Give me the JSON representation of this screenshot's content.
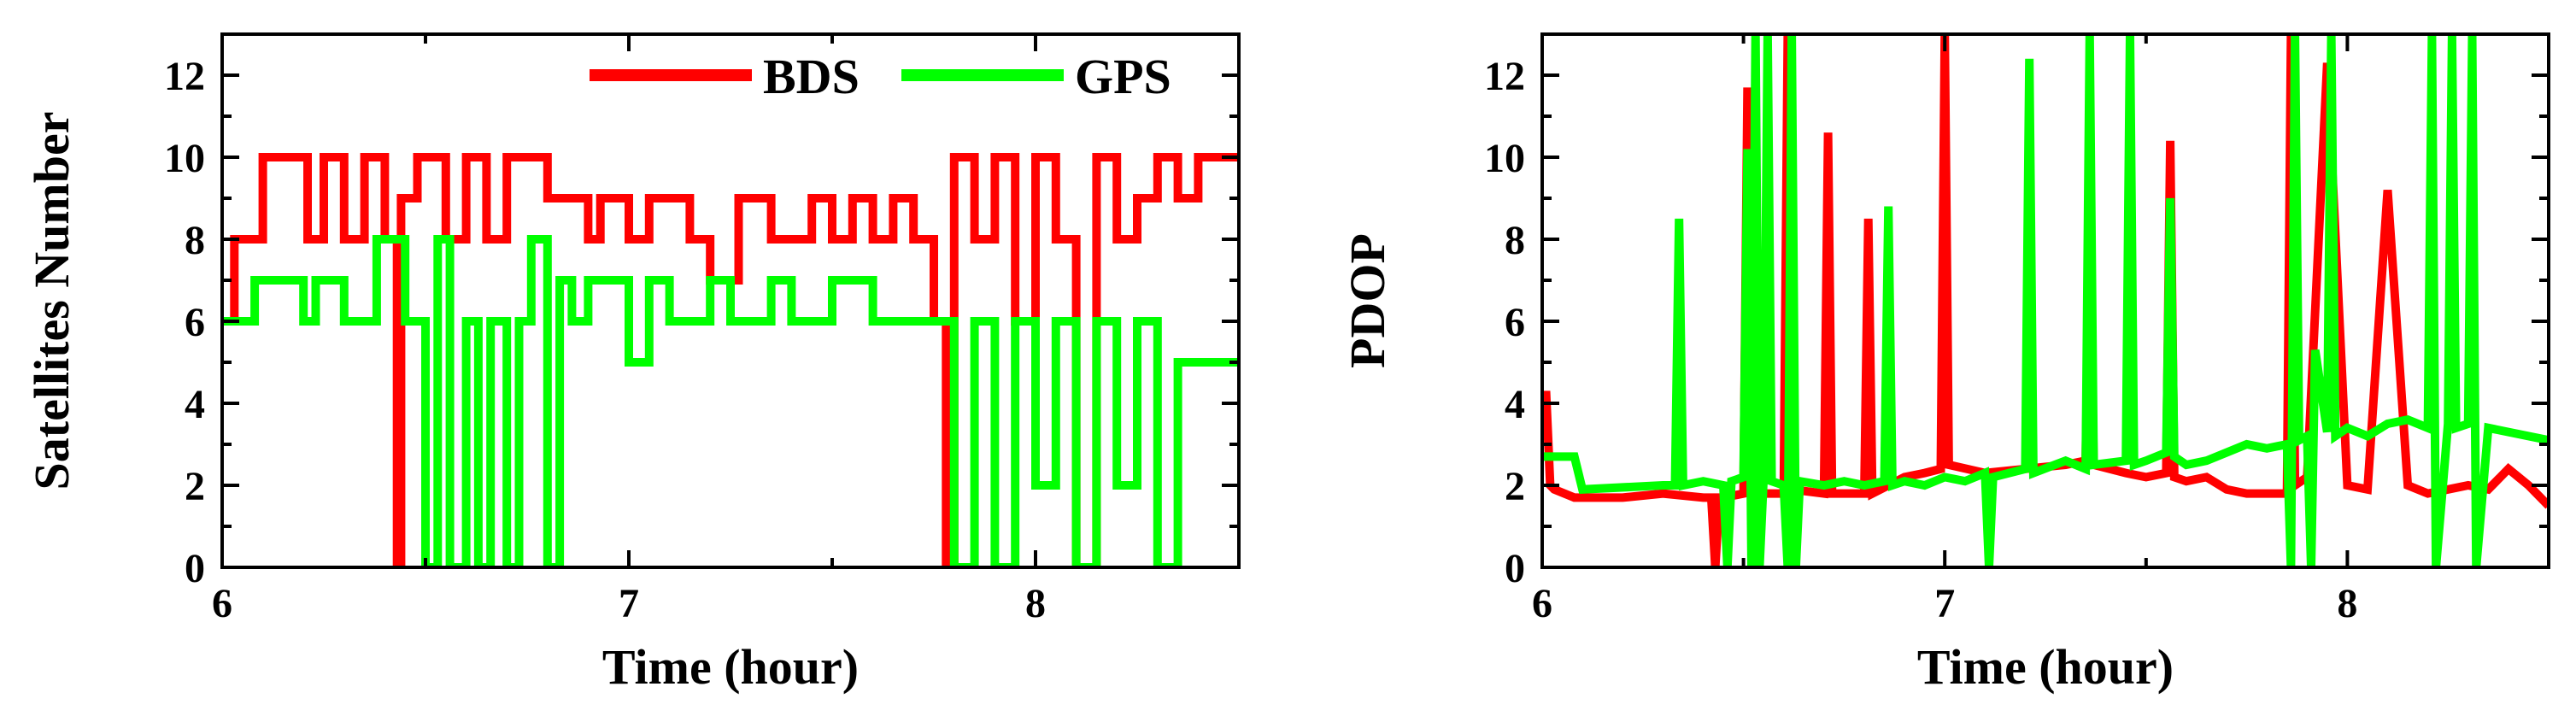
{
  "chart_data": [
    {
      "type": "line",
      "title": "",
      "xlabel": "Time (hour)",
      "ylabel": "Satellites Number",
      "xlim": [
        6,
        8.5
      ],
      "ylim": [
        0,
        13
      ],
      "xticks": [
        6,
        7,
        8
      ],
      "yticks": [
        0,
        2,
        4,
        6,
        8,
        10,
        12
      ],
      "grid": false,
      "legend_position": "top-right",
      "series": [
        {
          "name": "BDS",
          "color": "#ff0000",
          "x": [
            6.0,
            6.03,
            6.03,
            6.1,
            6.1,
            6.21,
            6.21,
            6.25,
            6.25,
            6.3,
            6.3,
            6.35,
            6.35,
            6.4,
            6.4,
            6.43,
            6.43,
            6.44,
            6.44,
            6.48,
            6.48,
            6.55,
            6.55,
            6.6,
            6.6,
            6.65,
            6.65,
            6.7,
            6.7,
            6.8,
            6.8,
            6.9,
            6.9,
            6.93,
            6.93,
            7.0,
            7.0,
            7.05,
            7.05,
            7.15,
            7.15,
            7.2,
            7.2,
            7.27,
            7.27,
            7.35,
            7.35,
            7.45,
            7.45,
            7.5,
            7.5,
            7.55,
            7.55,
            7.6,
            7.6,
            7.65,
            7.65,
            7.7,
            7.7,
            7.75,
            7.75,
            7.78,
            7.78,
            7.8,
            7.8,
            7.85,
            7.85,
            7.9,
            7.9,
            7.95,
            7.95,
            8.0,
            8.0,
            8.05,
            8.05,
            8.1,
            8.1,
            8.15,
            8.15,
            8.2,
            8.2,
            8.25,
            8.25,
            8.3,
            8.3,
            8.35,
            8.35,
            8.4,
            8.4,
            8.45,
            8.45,
            8.5
          ],
          "y": [
            6,
            6,
            8,
            8,
            10,
            10,
            8,
            8,
            10,
            10,
            8,
            8,
            10,
            10,
            8,
            8,
            0,
            0,
            9,
            9,
            10,
            10,
            8,
            8,
            10,
            10,
            8,
            8,
            10,
            10,
            9,
            9,
            8,
            8,
            9,
            9,
            8,
            8,
            9,
            9,
            8,
            8,
            7,
            7,
            9,
            9,
            8,
            8,
            9,
            9,
            8,
            8,
            9,
            9,
            8,
            8,
            9,
            9,
            8,
            8,
            6,
            6,
            0,
            0,
            10,
            10,
            8,
            8,
            10,
            10,
            6,
            6,
            10,
            10,
            8,
            8,
            0,
            0,
            10,
            10,
            8,
            8,
            9,
            9,
            10,
            10,
            9,
            9,
            10,
            10,
            10,
            10
          ]
        },
        {
          "name": "GPS",
          "color": "#00ff00",
          "x": [
            6.0,
            6.08,
            6.08,
            6.2,
            6.2,
            6.23,
            6.23,
            6.3,
            6.3,
            6.38,
            6.38,
            6.45,
            6.45,
            6.5,
            6.5,
            6.53,
            6.53,
            6.56,
            6.56,
            6.6,
            6.6,
            6.63,
            6.63,
            6.66,
            6.66,
            6.7,
            6.7,
            6.73,
            6.73,
            6.76,
            6.76,
            6.8,
            6.8,
            6.83,
            6.83,
            6.86,
            6.86,
            6.9,
            6.9,
            7.0,
            7.0,
            7.05,
            7.05,
            7.1,
            7.1,
            7.2,
            7.2,
            7.25,
            7.25,
            7.35,
            7.35,
            7.4,
            7.4,
            7.5,
            7.5,
            7.6,
            7.6,
            7.65,
            7.65,
            7.8,
            7.8,
            7.85,
            7.85,
            7.9,
            7.9,
            7.95,
            7.95,
            8.0,
            8.0,
            8.05,
            8.05,
            8.1,
            8.1,
            8.15,
            8.15,
            8.2,
            8.2,
            8.25,
            8.25,
            8.3,
            8.3,
            8.35,
            8.35,
            8.4,
            8.4,
            8.5
          ],
          "y": [
            6,
            6,
            7,
            7,
            6,
            6,
            7,
            7,
            6,
            6,
            8,
            8,
            6,
            6,
            0,
            0,
            8,
            8,
            0,
            0,
            6,
            6,
            0,
            0,
            6,
            6,
            0,
            0,
            6,
            6,
            8,
            8,
            0,
            0,
            7,
            7,
            6,
            6,
            7,
            7,
            5,
            5,
            7,
            7,
            6,
            6,
            7,
            7,
            6,
            6,
            7,
            7,
            6,
            6,
            7,
            7,
            6,
            6,
            6,
            6,
            0,
            0,
            6,
            6,
            0,
            0,
            6,
            6,
            2,
            2,
            6,
            6,
            0,
            0,
            6,
            6,
            2,
            2,
            6,
            6,
            0,
            0,
            5,
            5,
            5,
            5
          ]
        }
      ]
    },
    {
      "type": "line",
      "title": "",
      "xlabel": "Time (hour)",
      "ylabel": "PDOP",
      "xlim": [
        6,
        8.5
      ],
      "ylim": [
        0,
        13
      ],
      "xticks": [
        6,
        7,
        8
      ],
      "yticks": [
        0,
        2,
        4,
        6,
        8,
        10,
        12
      ],
      "grid": false,
      "series": [
        {
          "name": "BDS",
          "color": "#ff0000",
          "x": [
            6.0,
            6.01,
            6.02,
            6.03,
            6.08,
            6.2,
            6.3,
            6.4,
            6.42,
            6.43,
            6.44,
            6.45,
            6.5,
            6.51,
            6.52,
            6.6,
            6.61,
            6.62,
            6.7,
            6.71,
            6.72,
            6.8,
            6.81,
            6.82,
            6.9,
            6.95,
            6.99,
            7.0,
            7.01,
            7.1,
            7.2,
            7.3,
            7.35,
            7.36,
            7.37,
            7.45,
            7.5,
            7.55,
            7.56,
            7.57,
            7.6,
            7.65,
            7.7,
            7.75,
            7.8,
            7.85,
            7.86,
            7.87,
            7.9,
            7.95,
            8.0,
            8.05,
            8.1,
            8.15,
            8.2,
            8.25,
            8.3,
            8.35,
            8.4,
            8.45,
            8.5
          ],
          "y": [
            4.2,
            4.2,
            2.0,
            1.9,
            1.7,
            1.7,
            1.8,
            1.7,
            1.7,
            0,
            1.7,
            1.7,
            1.8,
            11.7,
            1.8,
            1.8,
            13,
            1.9,
            1.8,
            10.6,
            1.8,
            1.8,
            8.5,
            1.8,
            2.2,
            2.3,
            2.4,
            13,
            2.5,
            2.3,
            2.4,
            2.5,
            2.6,
            8.5,
            2.5,
            2.3,
            2.2,
            2.3,
            10.4,
            2.2,
            2.1,
            2.2,
            1.9,
            1.8,
            1.8,
            1.8,
            13,
            2.0,
            2.2,
            12.3,
            2.0,
            1.9,
            9.2,
            2.0,
            1.8,
            1.9,
            2.0,
            1.9,
            2.4,
            2.0,
            1.5
          ]
        },
        {
          "name": "GPS",
          "color": "#00ff00",
          "x": [
            6.0,
            6.08,
            6.1,
            6.3,
            6.33,
            6.34,
            6.35,
            6.4,
            6.45,
            6.46,
            6.47,
            6.5,
            6.51,
            6.52,
            6.53,
            6.54,
            6.55,
            6.56,
            6.57,
            6.6,
            6.61,
            6.62,
            6.63,
            6.64,
            6.7,
            6.75,
            6.8,
            6.85,
            6.86,
            6.87,
            6.9,
            6.95,
            7.0,
            7.05,
            7.1,
            7.11,
            7.12,
            7.2,
            7.21,
            7.22,
            7.3,
            7.35,
            7.36,
            7.37,
            7.45,
            7.46,
            7.47,
            7.5,
            7.55,
            7.56,
            7.57,
            7.6,
            7.65,
            7.7,
            7.75,
            7.8,
            7.85,
            7.86,
            7.87,
            7.88,
            7.9,
            7.91,
            7.92,
            7.95,
            7.96,
            7.97,
            8.0,
            8.05,
            8.1,
            8.15,
            8.2,
            8.21,
            8.22,
            8.25,
            8.26,
            8.27,
            8.3,
            8.31,
            8.32,
            8.35,
            8.4,
            8.5
          ],
          "y": [
            2.7,
            2.7,
            1.9,
            2.0,
            2.0,
            8.5,
            2.0,
            2.1,
            2.0,
            0,
            2.1,
            2.2,
            10.2,
            0,
            13,
            0,
            2.2,
            13,
            2.1,
            2.0,
            0,
            13,
            0,
            2.1,
            2.0,
            2.1,
            2.0,
            2.1,
            8.8,
            2.0,
            2.1,
            2.0,
            2.2,
            2.1,
            2.3,
            0,
            2.2,
            2.4,
            12.4,
            2.3,
            2.6,
            2.4,
            13,
            2.5,
            2.6,
            13,
            2.5,
            2.6,
            2.8,
            9.0,
            2.7,
            2.5,
            2.6,
            2.8,
            3.0,
            2.9,
            3.0,
            0,
            13,
            3.1,
            3.2,
            0,
            5.3,
            3.3,
            13,
            3.2,
            3.4,
            3.2,
            3.5,
            3.6,
            3.4,
            13,
            0,
            3.5,
            13,
            3.4,
            3.5,
            13,
            0,
            3.4,
            3.3,
            3.1
          ]
        }
      ]
    }
  ]
}
